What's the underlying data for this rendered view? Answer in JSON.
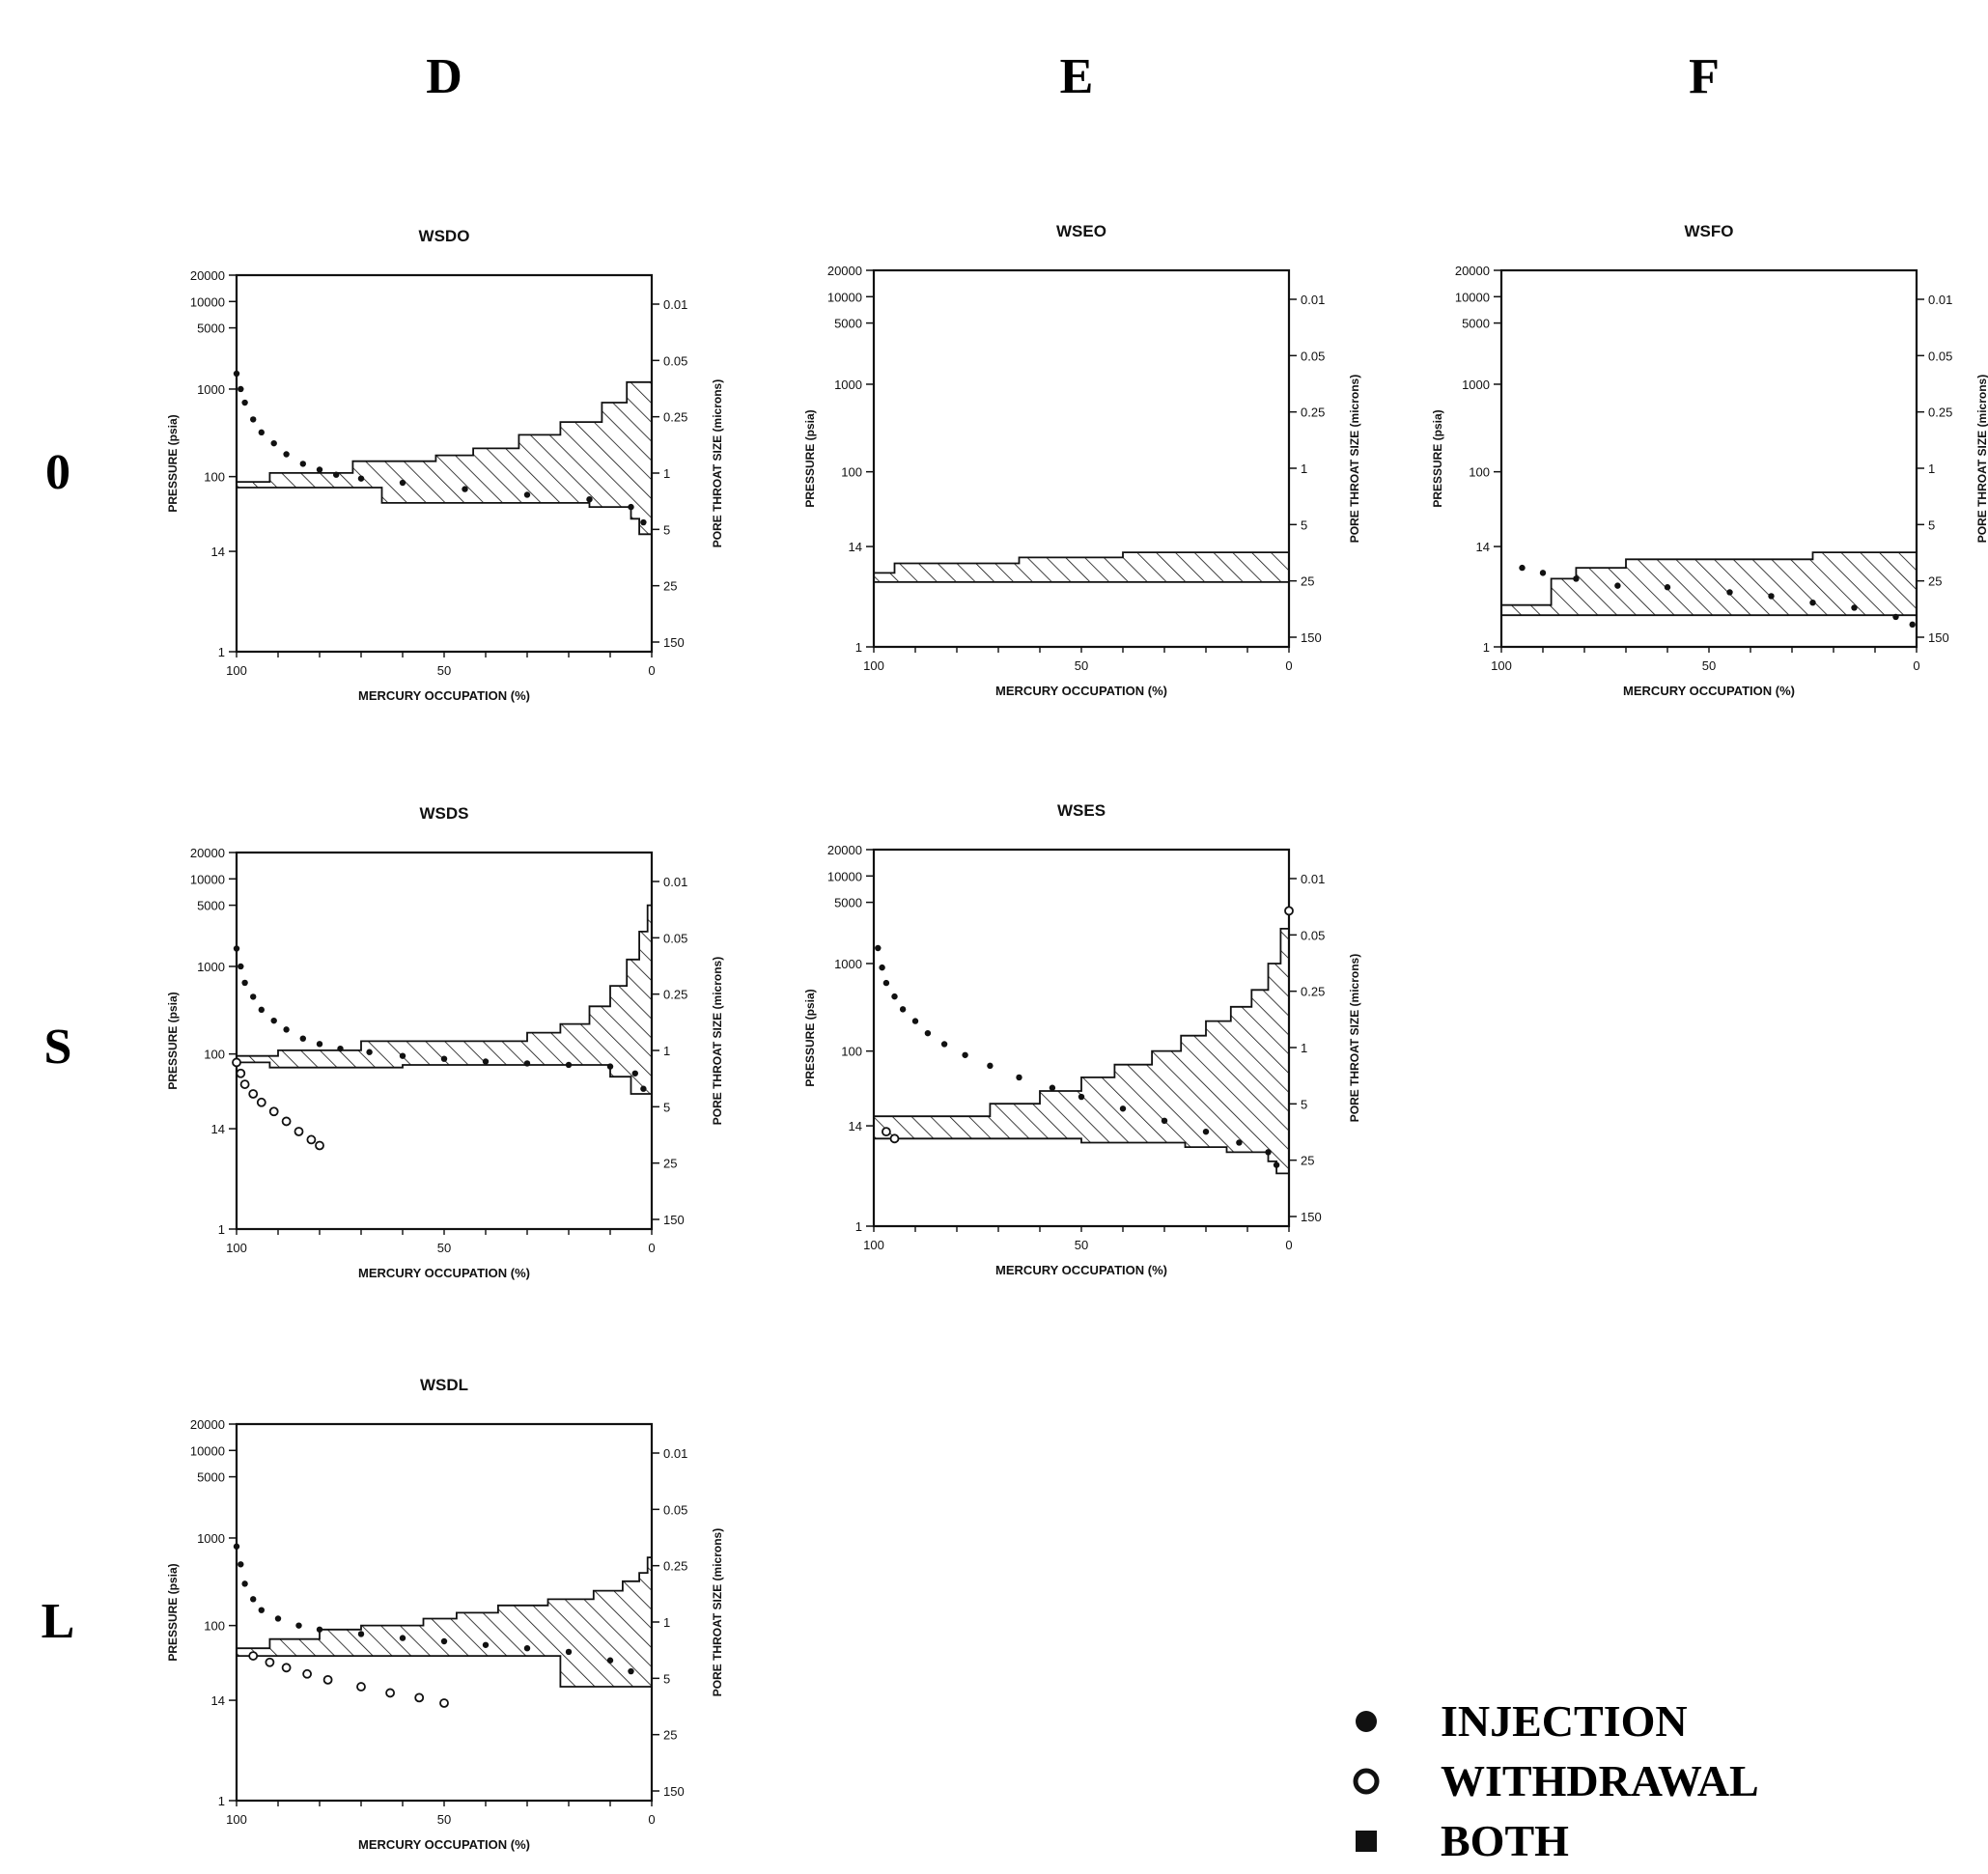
{
  "columns": [
    "D",
    "E",
    "F"
  ],
  "rows": [
    "0",
    "S",
    "L"
  ],
  "legend": [
    {
      "label": "INJECTION",
      "marker": "filled-circle"
    },
    {
      "label": "WITHDRAWAL",
      "marker": "open-circle"
    },
    {
      "label": "BOTH",
      "marker": "filled-square"
    }
  ],
  "colors": {
    "ink": "#111111",
    "background": "#ffffff"
  },
  "chart_data": [
    {
      "id": "WSDO",
      "title": "WSDO",
      "type": "line",
      "row": "0",
      "col": "D",
      "xlabel": "MERCURY OCCUPATION (%)",
      "ylabel": "PRESSURE (psia)",
      "y2label": "PORE THROAT SIZE (microns)",
      "xlim": [
        100,
        0
      ],
      "xticks": [
        "100",
        "50",
        "0"
      ],
      "yscale": "log",
      "ylim": [
        1,
        20000
      ],
      "yticks": [
        "20000",
        "10000",
        "5000",
        "1000",
        "100",
        "14",
        "1"
      ],
      "y2ticks": [
        "0.01",
        "0.05",
        "0.25",
        "1",
        "5",
        "25",
        "150"
      ],
      "envelope_upper": [
        [
          100,
          87
        ],
        [
          92,
          87
        ],
        [
          92,
          110
        ],
        [
          72,
          110
        ],
        [
          72,
          150
        ],
        [
          52,
          150
        ],
        [
          52,
          175
        ],
        [
          43,
          175
        ],
        [
          43,
          210
        ],
        [
          32,
          210
        ],
        [
          32,
          300
        ],
        [
          22,
          300
        ],
        [
          22,
          420
        ],
        [
          12,
          420
        ],
        [
          12,
          700
        ],
        [
          6,
          700
        ],
        [
          6,
          1200
        ],
        [
          0,
          1200
        ]
      ],
      "envelope_lower": [
        [
          100,
          75
        ],
        [
          65,
          75
        ],
        [
          65,
          50
        ],
        [
          15,
          50
        ],
        [
          15,
          45
        ],
        [
          5,
          45
        ],
        [
          5,
          33
        ],
        [
          3,
          33
        ],
        [
          3,
          22
        ],
        [
          0,
          22
        ]
      ],
      "injection": [
        [
          100,
          1500
        ],
        [
          99,
          1000
        ],
        [
          98,
          700
        ],
        [
          96,
          450
        ],
        [
          94,
          320
        ],
        [
          91,
          240
        ],
        [
          88,
          180
        ],
        [
          84,
          140
        ],
        [
          80,
          120
        ],
        [
          76,
          105
        ],
        [
          70,
          95
        ],
        [
          60,
          85
        ],
        [
          45,
          72
        ],
        [
          30,
          62
        ],
        [
          15,
          55
        ],
        [
          5,
          45
        ],
        [
          2,
          30
        ]
      ]
    },
    {
      "id": "WSEO",
      "title": "WSEO",
      "type": "line",
      "row": "0",
      "col": "E",
      "xlabel": "MERCURY OCCUPATION (%)",
      "ylabel": "PRESSURE (psia)",
      "y2label": "PORE THROAT SIZE (microns)",
      "xlim": [
        100,
        0
      ],
      "xticks": [
        "100",
        "50",
        "0"
      ],
      "yscale": "log",
      "ylim": [
        1,
        20000
      ],
      "yticks": [
        "20000",
        "10000",
        "5000",
        "1000",
        "100",
        "14",
        "1"
      ],
      "y2ticks": [
        "0.01",
        "0.05",
        "0.25",
        "1",
        "5",
        "25",
        "150"
      ],
      "envelope_upper": [
        [
          100,
          7
        ],
        [
          95,
          7
        ],
        [
          95,
          9
        ],
        [
          65,
          9
        ],
        [
          65,
          10.5
        ],
        [
          40,
          10.5
        ],
        [
          40,
          12
        ],
        [
          0,
          12
        ]
      ],
      "envelope_lower": [
        [
          100,
          5.5
        ],
        [
          0,
          5.5
        ],
        [
          0,
          7
        ],
        [
          0,
          7
        ]
      ],
      "injection": []
    },
    {
      "id": "WSFO",
      "title": "WSFO",
      "type": "line",
      "row": "0",
      "col": "F",
      "xlabel": "MERCURY OCCUPATION (%)",
      "ylabel": "PRESSURE (psia)",
      "y2label": "PORE THROAT SIZE (microns)",
      "xlim": [
        100,
        0
      ],
      "xticks": [
        "100",
        "50",
        "0"
      ],
      "yscale": "log",
      "ylim": [
        1,
        20000
      ],
      "yticks": [
        "20000",
        "10000",
        "5000",
        "1000",
        "100",
        "14",
        "1"
      ],
      "y2ticks": [
        "0.01",
        "0.05",
        "0.25",
        "1",
        "5",
        "25",
        "150"
      ],
      "envelope_upper": [
        [
          100,
          3
        ],
        [
          88,
          3
        ],
        [
          88,
          6
        ],
        [
          82,
          6
        ],
        [
          82,
          8
        ],
        [
          70,
          8
        ],
        [
          70,
          10
        ],
        [
          25,
          10
        ],
        [
          25,
          12
        ],
        [
          0,
          12
        ]
      ],
      "envelope_lower": [
        [
          100,
          2.3
        ],
        [
          0,
          2.3
        ],
        [
          0,
          3
        ],
        [
          0,
          3
        ]
      ],
      "injection": [
        [
          95,
          8
        ],
        [
          90,
          7
        ],
        [
          82,
          6
        ],
        [
          72,
          5
        ],
        [
          60,
          4.8
        ],
        [
          45,
          4.2
        ],
        [
          35,
          3.8
        ],
        [
          25,
          3.2
        ],
        [
          15,
          2.8
        ],
        [
          5,
          2.2
        ],
        [
          1,
          1.8
        ]
      ]
    },
    {
      "id": "WSDS",
      "title": "WSDS",
      "type": "line",
      "row": "S",
      "col": "D",
      "xlabel": "MERCURY OCCUPATION (%)",
      "ylabel": "PRESSURE (psia)",
      "y2label": "PORE THROAT SIZE (microns)",
      "xlim": [
        100,
        0
      ],
      "xticks": [
        "100",
        "50",
        "0"
      ],
      "yscale": "log",
      "ylim": [
        1,
        20000
      ],
      "yticks": [
        "20000",
        "10000",
        "5000",
        "1000",
        "100",
        "14",
        "1"
      ],
      "y2ticks": [
        "0.01",
        "0.05",
        "0.25",
        "1",
        "5",
        "25",
        "150"
      ],
      "envelope_upper": [
        [
          100,
          95
        ],
        [
          90,
          95
        ],
        [
          90,
          110
        ],
        [
          70,
          110
        ],
        [
          70,
          140
        ],
        [
          30,
          140
        ],
        [
          30,
          175
        ],
        [
          22,
          175
        ],
        [
          22,
          220
        ],
        [
          15,
          220
        ],
        [
          15,
          350
        ],
        [
          10,
          350
        ],
        [
          10,
          600
        ],
        [
          6,
          600
        ],
        [
          6,
          1200
        ],
        [
          3,
          1200
        ],
        [
          3,
          2500
        ],
        [
          1,
          2500
        ],
        [
          1,
          5000
        ],
        [
          0,
          5000
        ]
      ],
      "envelope_lower": [
        [
          100,
          80
        ],
        [
          92,
          80
        ],
        [
          92,
          70
        ],
        [
          60,
          70
        ],
        [
          60,
          75
        ],
        [
          10,
          75
        ],
        [
          10,
          55
        ],
        [
          5,
          55
        ],
        [
          5,
          35
        ],
        [
          0,
          35
        ]
      ],
      "injection": [
        [
          100,
          1600
        ],
        [
          99,
          1000
        ],
        [
          98,
          650
        ],
        [
          96,
          450
        ],
        [
          94,
          320
        ],
        [
          91,
          240
        ],
        [
          88,
          190
        ],
        [
          84,
          150
        ],
        [
          80,
          130
        ],
        [
          75,
          115
        ],
        [
          68,
          105
        ],
        [
          60,
          95
        ],
        [
          50,
          88
        ],
        [
          40,
          82
        ],
        [
          30,
          78
        ],
        [
          20,
          75
        ],
        [
          10,
          72
        ],
        [
          4,
          60
        ],
        [
          2,
          40
        ]
      ],
      "withdrawal": [
        [
          100,
          80
        ],
        [
          99,
          60
        ],
        [
          98,
          45
        ],
        [
          96,
          35
        ],
        [
          94,
          28
        ],
        [
          91,
          22
        ],
        [
          88,
          17
        ],
        [
          85,
          13
        ],
        [
          82,
          10.5
        ],
        [
          80,
          9
        ]
      ]
    },
    {
      "id": "WSES",
      "title": "WSES",
      "type": "line",
      "row": "S",
      "col": "E",
      "xlabel": "MERCURY OCCUPATION (%)",
      "ylabel": "PRESSURE (psia)",
      "y2label": "PORE THROAT SIZE (microns)",
      "xlim": [
        100,
        0
      ],
      "xticks": [
        "100",
        "50",
        "0"
      ],
      "yscale": "log",
      "ylim": [
        1,
        20000
      ],
      "yticks": [
        "20000",
        "10000",
        "5000",
        "1000",
        "100",
        "14",
        "1"
      ],
      "y2ticks": [
        "0.01",
        "0.05",
        "0.25",
        "1",
        "5",
        "25",
        "150"
      ],
      "envelope_upper": [
        [
          100,
          18
        ],
        [
          72,
          18
        ],
        [
          72,
          25
        ],
        [
          60,
          25
        ],
        [
          60,
          35
        ],
        [
          50,
          35
        ],
        [
          50,
          50
        ],
        [
          42,
          50
        ],
        [
          42,
          70
        ],
        [
          33,
          70
        ],
        [
          33,
          100
        ],
        [
          26,
          100
        ],
        [
          26,
          150
        ],
        [
          20,
          150
        ],
        [
          20,
          220
        ],
        [
          14,
          220
        ],
        [
          14,
          320
        ],
        [
          9,
          320
        ],
        [
          9,
          500
        ],
        [
          5,
          500
        ],
        [
          5,
          1000
        ],
        [
          2,
          1000
        ],
        [
          2,
          2500
        ],
        [
          0,
          2500
        ]
      ],
      "envelope_lower": [
        [
          100,
          10
        ],
        [
          50,
          10
        ],
        [
          50,
          9
        ],
        [
          25,
          9
        ],
        [
          25,
          8
        ],
        [
          15,
          8
        ],
        [
          15,
          7
        ],
        [
          5,
          7
        ],
        [
          5,
          5.5
        ],
        [
          3,
          5.5
        ],
        [
          3,
          4
        ],
        [
          0,
          4
        ]
      ],
      "injection": [
        [
          99,
          1500
        ],
        [
          98,
          900
        ],
        [
          97,
          600
        ],
        [
          95,
          420
        ],
        [
          93,
          300
        ],
        [
          90,
          220
        ],
        [
          87,
          160
        ],
        [
          83,
          120
        ],
        [
          78,
          90
        ],
        [
          72,
          68
        ],
        [
          65,
          50
        ],
        [
          57,
          38
        ],
        [
          50,
          30
        ],
        [
          40,
          22
        ],
        [
          30,
          16
        ],
        [
          20,
          12
        ],
        [
          12,
          9
        ],
        [
          5,
          7
        ],
        [
          3,
          5
        ]
      ],
      "withdrawal": [
        [
          0,
          4000
        ],
        [
          97,
          12
        ],
        [
          95,
          10
        ]
      ]
    },
    {
      "id": "WSDL",
      "title": "WSDL",
      "type": "line",
      "row": "L",
      "col": "D",
      "xlabel": "MERCURY OCCUPATION (%)",
      "ylabel": "PRESSURE (psia)",
      "y2label": "PORE THROAT SIZE (microns)",
      "xlim": [
        100,
        0
      ],
      "xticks": [
        "100",
        "50",
        "0"
      ],
      "yscale": "log",
      "ylim": [
        1,
        20000
      ],
      "yticks": [
        "20000",
        "10000",
        "5000",
        "1000",
        "100",
        "14",
        "1"
      ],
      "y2ticks": [
        "0.01",
        "0.05",
        "0.25",
        "1",
        "5",
        "25",
        "150"
      ],
      "envelope_upper": [
        [
          100,
          55
        ],
        [
          92,
          55
        ],
        [
          92,
          70
        ],
        [
          80,
          70
        ],
        [
          80,
          90
        ],
        [
          70,
          90
        ],
        [
          70,
          100
        ],
        [
          55,
          100
        ],
        [
          55,
          120
        ],
        [
          47,
          120
        ],
        [
          47,
          140
        ],
        [
          37,
          140
        ],
        [
          37,
          170
        ],
        [
          25,
          170
        ],
        [
          25,
          200
        ],
        [
          14,
          200
        ],
        [
          14,
          250
        ],
        [
          7,
          250
        ],
        [
          7,
          320
        ],
        [
          3,
          320
        ],
        [
          3,
          400
        ],
        [
          1,
          400
        ],
        [
          1,
          600
        ],
        [
          0,
          600
        ]
      ],
      "envelope_lower": [
        [
          100,
          45
        ],
        [
          22,
          45
        ],
        [
          22,
          20
        ],
        [
          0,
          20
        ]
      ],
      "injection": [
        [
          100,
          800
        ],
        [
          99,
          500
        ],
        [
          98,
          300
        ],
        [
          96,
          200
        ],
        [
          94,
          150
        ],
        [
          90,
          120
        ],
        [
          85,
          100
        ],
        [
          80,
          90
        ],
        [
          70,
          80
        ],
        [
          60,
          72
        ],
        [
          50,
          66
        ],
        [
          40,
          60
        ],
        [
          30,
          55
        ],
        [
          20,
          50
        ],
        [
          10,
          40
        ],
        [
          5,
          30
        ]
      ],
      "withdrawal": [
        [
          96,
          45
        ],
        [
          92,
          38
        ],
        [
          88,
          33
        ],
        [
          83,
          28
        ],
        [
          78,
          24
        ],
        [
          70,
          20
        ],
        [
          63,
          17
        ],
        [
          56,
          15
        ],
        [
          50,
          13
        ]
      ]
    }
  ]
}
